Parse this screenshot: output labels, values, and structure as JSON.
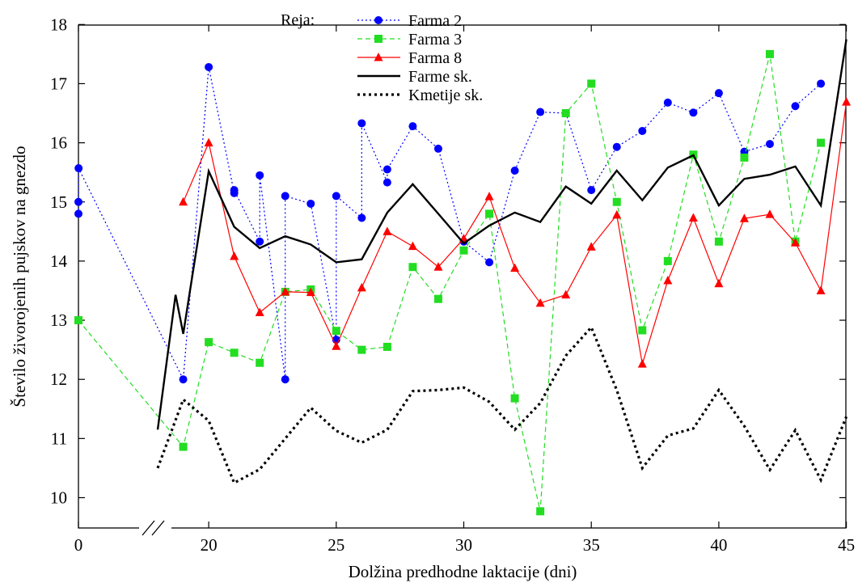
{
  "chart_data": {
    "type": "line",
    "xlabel": "Dolžina predhodne laktacije (dni)",
    "ylabel": "Število živorojenih pujskov na gnezdo",
    "ylim": [
      9.5,
      18
    ],
    "x_ticks": [
      0,
      20,
      25,
      30,
      35,
      40,
      45
    ],
    "y_ticks": [
      10,
      11,
      12,
      13,
      14,
      15,
      16,
      17,
      18
    ],
    "axis_break": "between 0 and 19",
    "grid": false,
    "legend": {
      "title": "Reja:",
      "position": "top-center"
    },
    "series": [
      {
        "name": "Farma 2",
        "color": "#0000ff",
        "line_style": "dotted",
        "marker": "circle",
        "x": [
          0,
          0,
          1,
          19,
          20,
          21,
          21,
          22,
          22,
          23,
          23,
          24,
          25,
          25,
          26,
          26,
          27,
          27,
          28,
          29,
          30,
          31,
          32,
          33,
          34,
          35,
          36,
          37,
          38,
          39,
          40,
          41,
          42,
          43,
          44
        ],
        "y": [
          14.8,
          15.0,
          15.57,
          12.0,
          17.28,
          15.15,
          15.2,
          14.33,
          15.45,
          12.0,
          15.1,
          14.97,
          12.67,
          15.1,
          14.73,
          16.33,
          15.33,
          15.55,
          16.28,
          15.9,
          14.33,
          13.98,
          15.53,
          16.52,
          16.5,
          15.2,
          15.93,
          16.2,
          16.68,
          16.51,
          16.84,
          15.85,
          15.98,
          16.62,
          17.0
        ]
      },
      {
        "name": "Farma 3",
        "color": "#22dd22",
        "line_style": "dashed",
        "marker": "square",
        "x": [
          0,
          19,
          20,
          21,
          22,
          23,
          24,
          25,
          26,
          27,
          28,
          29,
          30,
          31,
          32,
          33,
          34,
          35,
          36,
          37,
          38,
          39,
          40,
          41,
          42,
          43,
          44
        ],
        "y": [
          13.0,
          10.86,
          12.63,
          12.45,
          12.28,
          13.48,
          13.52,
          12.82,
          12.5,
          12.55,
          13.9,
          13.36,
          14.18,
          14.8,
          11.68,
          9.77,
          16.5,
          17.0,
          15.0,
          12.83,
          14.0,
          15.8,
          14.33,
          15.75,
          17.5,
          14.33,
          16.0
        ]
      },
      {
        "name": "Farma 8",
        "color": "#ff0000",
        "line_style": "solid",
        "marker": "triangle",
        "x": [
          19,
          20,
          21,
          22,
          23,
          24,
          25,
          26,
          27,
          28,
          29,
          30,
          31,
          32,
          33,
          34,
          35,
          36,
          37,
          38,
          39,
          40,
          41,
          42,
          43,
          44,
          45
        ],
        "y": [
          15.0,
          16.0,
          14.08,
          13.13,
          13.48,
          13.47,
          12.56,
          13.55,
          14.5,
          14.25,
          13.9,
          14.38,
          15.09,
          13.88,
          13.29,
          13.43,
          14.24,
          14.78,
          12.26,
          13.67,
          14.73,
          13.62,
          14.72,
          14.79,
          14.31,
          13.5,
          16.69
        ]
      },
      {
        "name": "Farme sk.",
        "color": "#000000",
        "line_style": "solid-thick",
        "marker": "none",
        "x": [
          18,
          18.7,
          19,
          20,
          21,
          22,
          23,
          24,
          25,
          26,
          27,
          28,
          29,
          30,
          31,
          32,
          33,
          34,
          35,
          36,
          37,
          38,
          39,
          40,
          41,
          42,
          43,
          44,
          45
        ],
        "y": [
          11.15,
          13.43,
          12.77,
          15.52,
          14.58,
          14.22,
          14.42,
          14.28,
          13.98,
          14.03,
          14.82,
          15.3,
          14.8,
          14.3,
          14.6,
          14.82,
          14.66,
          15.26,
          14.97,
          15.53,
          15.03,
          15.58,
          15.79,
          14.94,
          15.39,
          15.46,
          15.6,
          14.94,
          17.75
        ]
      },
      {
        "name": "Kmetije sk.",
        "color": "#000000",
        "line_style": "dotted-thick",
        "marker": "none",
        "x": [
          18,
          19,
          20,
          21,
          22,
          23,
          24,
          25,
          26,
          27,
          28,
          29,
          30,
          31,
          32,
          33,
          34,
          35,
          36,
          37,
          38,
          39,
          40,
          41,
          42,
          43,
          44,
          45
        ],
        "y": [
          10.5,
          11.66,
          11.3,
          10.25,
          10.48,
          11.0,
          11.52,
          11.13,
          10.93,
          11.15,
          11.8,
          11.82,
          11.86,
          11.62,
          11.15,
          11.6,
          12.4,
          12.88,
          11.82,
          10.5,
          11.05,
          11.17,
          11.82,
          11.21,
          10.47,
          11.14,
          10.3,
          11.37
        ]
      }
    ]
  }
}
